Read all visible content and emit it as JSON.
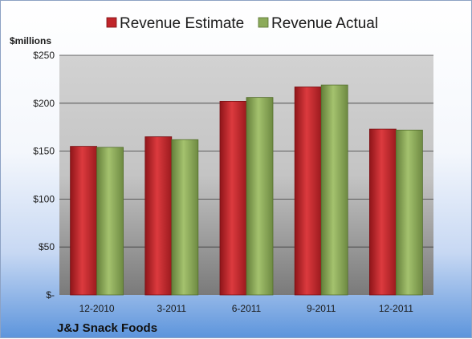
{
  "chart_data": {
    "type": "bar",
    "categories": [
      "12-2010",
      "3-2011",
      "6-2011",
      "9-2011",
      "12-2011"
    ],
    "series": [
      {
        "name": "Revenue Estimate",
        "values": [
          155,
          165,
          202,
          217,
          173
        ],
        "color": "#c0252a"
      },
      {
        "name": "Revenue Actual",
        "values": [
          154,
          162,
          206,
          219,
          172
        ],
        "color": "#8cab5a"
      }
    ],
    "y_unit_label": "$millions",
    "ylim": [
      0,
      250
    ],
    "y_ticks": [
      0,
      50,
      100,
      150,
      200,
      250
    ],
    "y_tick_labels": [
      "$-",
      "$50",
      "$100",
      "$150",
      "$200",
      "$250"
    ],
    "grid": true,
    "legend_position": "top",
    "footer_label": "J&J Snack Foods"
  }
}
